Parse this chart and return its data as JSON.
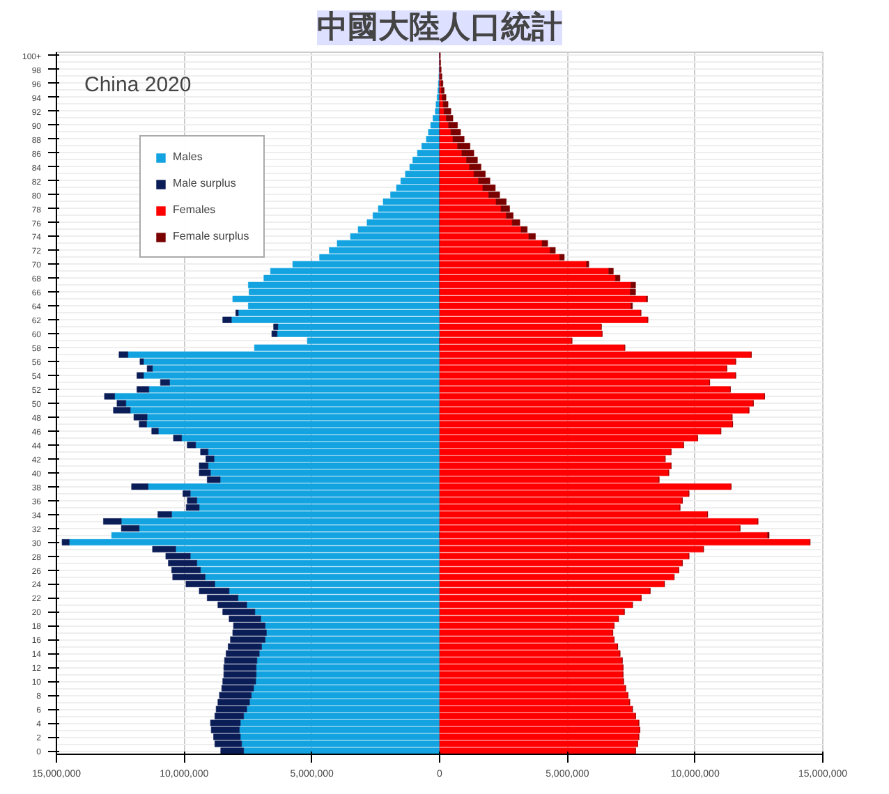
{
  "chart_data": {
    "type": "bar",
    "orientation": "horizontal",
    "stacked": true,
    "title": "中國大陸人口統計",
    "subtitle": "China 2020",
    "categories": [
      "100+",
      null,
      "98",
      null,
      "96",
      null,
      "94",
      null,
      "92",
      null,
      "90",
      null,
      "88",
      null,
      "86",
      null,
      "84",
      null,
      "82",
      null,
      "80",
      null,
      "78",
      null,
      "76",
      null,
      "74",
      null,
      "72",
      null,
      "70",
      null,
      "68",
      null,
      "66",
      null,
      "64",
      null,
      "62",
      null,
      "60",
      null,
      "58",
      null,
      "56",
      null,
      "54",
      null,
      "52",
      null,
      "50",
      null,
      "48",
      null,
      "46",
      null,
      "44",
      null,
      "42",
      null,
      "40",
      null,
      "38",
      null,
      "36",
      null,
      "34",
      null,
      "32",
      null,
      "30",
      null,
      "28",
      null,
      "26",
      null,
      "24",
      null,
      "22",
      null,
      "20",
      null,
      "18",
      null,
      "16",
      null,
      "14",
      null,
      "12",
      null,
      "10",
      null,
      "8",
      null,
      "6",
      null,
      "4",
      null,
      "2",
      null,
      "0"
    ],
    "series": [
      {
        "name": "Males",
        "color": "#12a3e0",
        "values": [
          -10000.0,
          -10000.0,
          -20000.0,
          -30000.0,
          -50000.0,
          -70000.0,
          -100000.0,
          -140000.0,
          -170000.0,
          -260000.0,
          -350000.0,
          -440000.0,
          -520000.0,
          -700000.0,
          -870000.0,
          -1050000.0,
          -1170000.0,
          -1340000.0,
          -1520000.0,
          -1690000.0,
          -1920000.0,
          -2210000.0,
          -2400000.0,
          -2610000.0,
          -2840000.0,
          -3190000.0,
          -3490000.0,
          -4010000.0,
          -4320000.0,
          -4700000.0,
          -5750000.0,
          -6620000.0,
          -6880000.0,
          -7490000.0,
          -7460000.0,
          -8100000.0,
          -7490000.0,
          -7880000.0,
          -8150000.0,
          -6330000.0,
          -6360000.0,
          -5180000.0,
          -7250000.0,
          -12200000.0,
          -11590000.0,
          -11240000.0,
          -11590000.0,
          -10570000.0,
          -11380000.0,
          -12720000.0,
          -12280000.0,
          -12110000.0,
          -11450000.0,
          -11470000.0,
          -11010000.0,
          -10100000.0,
          -9550000.0,
          -9060000.0,
          -8830000.0,
          -9060000.0,
          -8970000.0,
          -8590000.0,
          -11410000.0,
          -9760000.0,
          -9500000.0,
          -9410000.0,
          -10490000.0,
          -12460000.0,
          -11760000.0,
          -12840000.0,
          -14500000.0,
          -10330000.0,
          -9760000.0,
          -9500000.0,
          -9360000.0,
          -9180000.0,
          -8800000.0,
          -8240000.0,
          -7890000.0,
          -7550000.0,
          -7230000.0,
          -7000000.0,
          -6830000.0,
          -6780000.0,
          -6830000.0,
          -6970000.0,
          -7060000.0,
          -7150000.0,
          -7180000.0,
          -7180000.0,
          -7200000.0,
          -7280000.0,
          -7370000.0,
          -7440000.0,
          -7550000.0,
          -7670000.0,
          -7800000.0,
          -7840000.0,
          -7800000.0,
          -7750000.0,
          -7670000.0
        ]
      },
      {
        "name": "Male surplus",
        "color": "#0b1d57",
        "values": [
          0,
          0,
          0,
          0,
          0,
          0,
          0,
          0,
          0,
          0,
          0,
          0,
          0,
          0,
          0,
          0,
          0,
          0,
          0,
          0,
          0,
          0,
          0,
          0,
          0,
          0,
          0,
          0,
          0,
          0,
          0,
          0,
          0,
          0,
          0,
          0,
          0,
          -100000.0,
          -340000.0,
          -170000.0,
          -210000.0,
          0,
          0,
          -350000.0,
          -140000.0,
          -210000.0,
          -260000.0,
          -360000.0,
          -470000.0,
          -400000.0,
          -350000.0,
          -660000.0,
          -520000.0,
          -290000.0,
          -260000.0,
          -320000.0,
          -330000.0,
          -300000.0,
          -320000.0,
          -350000.0,
          -440000.0,
          -510000.0,
          -650000.0,
          -290000.0,
          -380000.0,
          -510000.0,
          -540000.0,
          -700000.0,
          -700000.0,
          0,
          -280000.0,
          -910000.0,
          -960000.0,
          -1120000.0,
          -1130000.0,
          -1270000.0,
          -1130000.0,
          -1170000.0,
          -1210000.0,
          -1130000.0,
          -1260000.0,
          -1240000.0,
          -1240000.0,
          -1320000.0,
          -1360000.0,
          -1310000.0,
          -1300000.0,
          -1270000.0,
          -1270000.0,
          -1270000.0,
          -1290000.0,
          -1250000.0,
          -1250000.0,
          -1240000.0,
          -1200000.0,
          -1130000.0,
          -1170000.0,
          -1100000.0,
          -1050000.0,
          -1050000.0,
          -900000.0
        ]
      },
      {
        "name": "Females",
        "color": "#ff0000",
        "values": [
          10000.0,
          10000.0,
          20000.0,
          30000.0,
          50000.0,
          70000.0,
          100000.0,
          140000.0,
          170000.0,
          260000.0,
          350000.0,
          440000.0,
          520000.0,
          700000.0,
          870000.0,
          1050000.0,
          1170000.0,
          1340000.0,
          1520000.0,
          1690000.0,
          1920000.0,
          2210000.0,
          2400000.0,
          2610000.0,
          2840000.0,
          3190000.0,
          3490000.0,
          4010000.0,
          4320000.0,
          4700000.0,
          5750000.0,
          6620000.0,
          6880000.0,
          7490000.0,
          7460000.0,
          8100000.0,
          7490000.0,
          7880000.0,
          8150000.0,
          6330000.0,
          6360000.0,
          5180000.0,
          7250000.0,
          12200000.0,
          11590000.0,
          11240000.0,
          11590000.0,
          10570000.0,
          11380000.0,
          12720000.0,
          12280000.0,
          12110000.0,
          11450000.0,
          11470000.0,
          11010000.0,
          10100000.0,
          9550000.0,
          9060000.0,
          8830000.0,
          9060000.0,
          8970000.0,
          8590000.0,
          11410000.0,
          9760000.0,
          9500000.0,
          9410000.0,
          10490000.0,
          12460000.0,
          11760000.0,
          12840000.0,
          14500000.0,
          10330000.0,
          9760000.0,
          9500000.0,
          9360000.0,
          9180000.0,
          8800000.0,
          8240000.0,
          7890000.0,
          7550000.0,
          7230000.0,
          7000000.0,
          6830000.0,
          6780000.0,
          6830000.0,
          6970000.0,
          7060000.0,
          7150000.0,
          7180000.0,
          7180000.0,
          7200000.0,
          7280000.0,
          7370000.0,
          7440000.0,
          7550000.0,
          7670000.0,
          7800000.0,
          7840000.0,
          7800000.0,
          7750000.0,
          7670000.0
        ]
      },
      {
        "name": "Female surplus",
        "color": "#7a0000",
        "values": [
          20000.0,
          30000.0,
          40000.0,
          60000.0,
          80000.0,
          110000.0,
          150000.0,
          190000.0,
          270000.0,
          260000.0,
          350000.0,
          380000.0,
          440000.0,
          490000.0,
          470000.0,
          430000.0,
          450000.0,
          450000.0,
          450000.0,
          490000.0,
          430000.0,
          400000.0,
          340000.0,
          270000.0,
          300000.0,
          240000.0,
          260000.0,
          220000.0,
          210000.0,
          180000.0,
          90000.0,
          180000.0,
          180000.0,
          180000.0,
          210000.0,
          40000.0,
          60000.0,
          0,
          0,
          0,
          0,
          0,
          0,
          0,
          0,
          0,
          0,
          0,
          0,
          0,
          0,
          0,
          0,
          0,
          0,
          0,
          0,
          0,
          0,
          0,
          0,
          0,
          0,
          0,
          0,
          0,
          0,
          0,
          0,
          60000.0,
          0,
          0,
          0,
          0,
          0,
          0,
          0,
          0,
          0,
          0,
          0,
          0,
          0,
          0,
          0,
          0,
          0,
          0,
          0,
          0,
          0,
          0,
          0,
          0,
          0,
          0,
          0,
          0,
          0,
          0,
          0
        ]
      }
    ],
    "xlim": [
      -15000000,
      15000000
    ],
    "xticks": [
      {
        "value": -15000000,
        "label": "15,000,000"
      },
      {
        "value": -10000000,
        "label": "10,000,000"
      },
      {
        "value": -5000000,
        "label": "5,000,000"
      },
      {
        "value": 0,
        "label": "0"
      },
      {
        "value": 5000000,
        "label": "5,000,000"
      },
      {
        "value": 10000000,
        "label": "10,000,000"
      },
      {
        "value": 15000000,
        "label": "15,000,000"
      }
    ],
    "grid": true,
    "legend": "top left"
  }
}
